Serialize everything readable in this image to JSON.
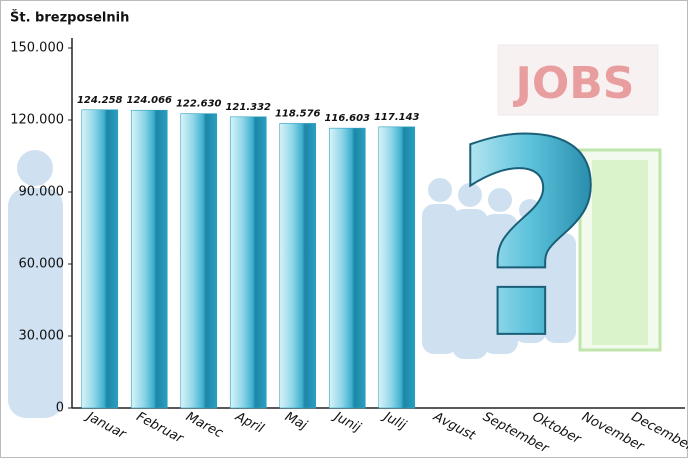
{
  "chart_data": {
    "type": "bar",
    "ylabel": "Št. brezposelnih",
    "categories": [
      "Januar",
      "Februar",
      "Marec",
      "April",
      "Maj",
      "Junij",
      "Julij",
      "Avgust",
      "September",
      "Oktober",
      "November",
      "December"
    ],
    "values": [
      124258,
      124066,
      122630,
      121332,
      118576,
      116603,
      117143,
      null,
      null,
      null,
      null,
      null
    ],
    "value_labels": [
      "124.258",
      "124.066",
      "122.630",
      "121.332",
      "118.576",
      "116.603",
      "117.143",
      null,
      null,
      null,
      null,
      null
    ],
    "color": "#2b9fc0",
    "ylim": [
      0,
      150000
    ],
    "yticks": [
      0,
      {
        "value": 30000,
        "label": "30.000"
      },
      {
        "value": 60000,
        "label": "60.000"
      },
      {
        "value": 90000,
        "label": "90.000"
      },
      {
        "value": 120000,
        "label": "120.000"
      },
      {
        "value": 150000,
        "label": "150.000"
      }
    ],
    "grid": false,
    "decor": {
      "sign": "JOBS",
      "symbol": "?"
    }
  }
}
